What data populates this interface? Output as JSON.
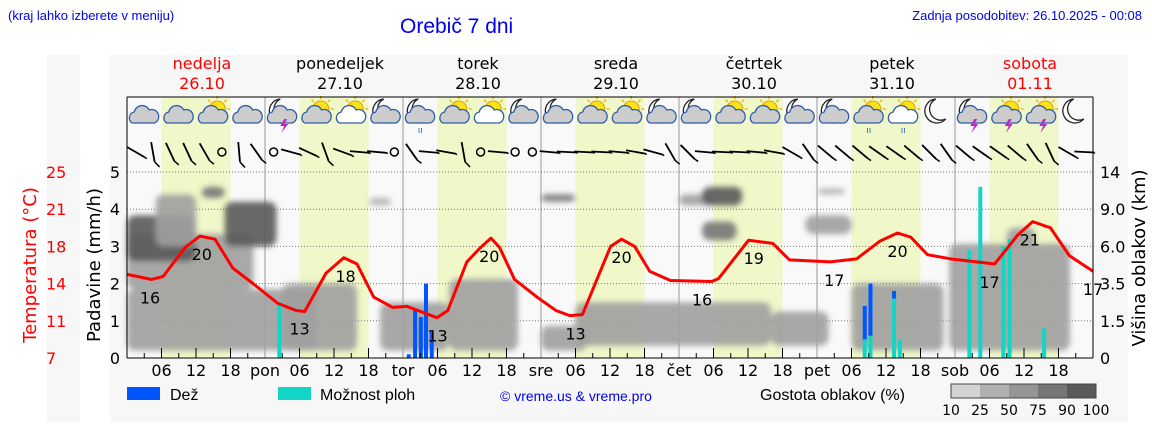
{
  "header": {
    "hint": "(kraj lahko izberete v meniju)",
    "title": "Orebič 7 dni",
    "updated": "Zadnja posodobitev: 26.10.2025 - 00:08"
  },
  "days": [
    {
      "name": "nedelja",
      "date": "26.10",
      "abbr": "",
      "weekend": true
    },
    {
      "name": "ponedeljek",
      "date": "27.10",
      "abbr": "pon",
      "weekend": false
    },
    {
      "name": "torek",
      "date": "28.10",
      "abbr": "tor",
      "weekend": false
    },
    {
      "name": "sreda",
      "date": "29.10",
      "abbr": "sre",
      "weekend": false
    },
    {
      "name": "četrtek",
      "date": "30.10",
      "abbr": "čet",
      "weekend": false
    },
    {
      "name": "petek",
      "date": "31.10",
      "abbr": "pet",
      "weekend": false
    },
    {
      "name": "sobota",
      "date": "01.11",
      "abbr": "sob",
      "weekend": true
    }
  ],
  "colors": {
    "weekend": "#ff0000",
    "weekday": "#000000",
    "temp": "#ff0000",
    "rain": "#0055ff",
    "showers": "#11d6c6",
    "daylight": "#f0f7c8",
    "link": "#0000ee"
  },
  "legend": {
    "rain_label": "Dež",
    "showers_label": "Možnost ploh",
    "copyright": "© vreme.us & vreme.pro",
    "cloud_label": "Gostota oblakov (%)",
    "cloud_scale": [
      {
        "label": "10",
        "color": "#d3d3d3"
      },
      {
        "label": "25",
        "color": "#b1b1b1"
      },
      {
        "label": "50",
        "color": "#959595"
      },
      {
        "label": "75",
        "color": "#767676"
      },
      {
        "label": "90",
        "color": "#5a5a5a"
      }
    ],
    "cloud_scale_last": "100"
  },
  "chart_data": {
    "type": "line",
    "title": "Orebič 7 dni",
    "xlabel": "",
    "hour_ticks": [
      "06",
      "12",
      "18"
    ],
    "x_range_hours": [
      0,
      168
    ],
    "left_axis_temp": {
      "label": "Temperatura (°C)",
      "ticks": [
        "25",
        "21",
        "18",
        "14",
        "11",
        "7"
      ]
    },
    "left_axis_precip": {
      "label": "Padavine (mm/h)",
      "ticks": [
        "5",
        "4",
        "3",
        "2",
        "1",
        "0"
      ],
      "ylim": [
        0,
        5
      ]
    },
    "right_axis_cloud": {
      "label": "Višina oblakov (km)",
      "ticks": [
        "14",
        "9.0",
        "6.0",
        "3.5",
        "1.5",
        "0"
      ]
    },
    "temperature": [
      [
        0,
        16.1
      ],
      [
        4.3,
        15.6
      ],
      [
        6.3,
        15.9
      ],
      [
        10.1,
        18.7
      ],
      [
        12.7,
        19.8
      ],
      [
        15.3,
        19.5
      ],
      [
        18.4,
        16.7
      ],
      [
        21.7,
        15.3
      ],
      [
        26.2,
        13.3
      ],
      [
        29.4,
        12.6
      ],
      [
        30.9,
        12.5
      ],
      [
        34.6,
        16.2
      ],
      [
        37.7,
        17.7
      ],
      [
        40,
        17.1
      ],
      [
        42.9,
        13.9
      ],
      [
        46.2,
        12.9
      ],
      [
        48.7,
        13.0
      ],
      [
        52,
        12.3
      ],
      [
        53.9,
        11.9
      ],
      [
        55.8,
        12.6
      ],
      [
        59.1,
        17.3
      ],
      [
        61.5,
        18.7
      ],
      [
        63.3,
        19.6
      ],
      [
        64.8,
        18.7
      ],
      [
        67.4,
        15.6
      ],
      [
        71.3,
        13.9
      ],
      [
        74.6,
        12.6
      ],
      [
        77,
        12.1
      ],
      [
        79.2,
        12.2
      ],
      [
        84.1,
        18.8
      ],
      [
        86,
        19.5
      ],
      [
        88.3,
        18.8
      ],
      [
        90.9,
        16.4
      ],
      [
        94.5,
        15.5
      ],
      [
        101.7,
        15.4
      ],
      [
        102.9,
        15.7
      ],
      [
        108.1,
        19.4
      ],
      [
        112.3,
        19.1
      ],
      [
        115.2,
        17.5
      ],
      [
        122.3,
        17.3
      ],
      [
        126.9,
        17.6
      ],
      [
        130.9,
        19.3
      ],
      [
        134,
        20.1
      ],
      [
        136.3,
        19.7
      ],
      [
        139.2,
        18.0
      ],
      [
        143.2,
        17.6
      ],
      [
        150.9,
        17.1
      ],
      [
        154.9,
        19.9
      ],
      [
        157.5,
        21.2
      ],
      [
        160.6,
        20.6
      ],
      [
        163.9,
        17.9
      ],
      [
        168.4,
        16.4
      ]
    ],
    "temp_labels": [
      {
        "hour": 4,
        "value": "16",
        "pos": "below"
      },
      {
        "hour": 13,
        "value": "20",
        "pos": "below"
      },
      {
        "hour": 30,
        "value": "13",
        "pos": "below"
      },
      {
        "hour": 38,
        "value": "18",
        "pos": "below"
      },
      {
        "hour": 54,
        "value": "13",
        "pos": "below"
      },
      {
        "hour": 63,
        "value": "20",
        "pos": "below"
      },
      {
        "hour": 78,
        "value": "13",
        "pos": "below"
      },
      {
        "hour": 86,
        "value": "20",
        "pos": "below"
      },
      {
        "hour": 100,
        "value": "16",
        "pos": "below"
      },
      {
        "hour": 109,
        "value": "19",
        "pos": "below"
      },
      {
        "hour": 123,
        "value": "17",
        "pos": "below"
      },
      {
        "hour": 134,
        "value": "20",
        "pos": "below"
      },
      {
        "hour": 150,
        "value": "17",
        "pos": "below"
      },
      {
        "hour": 157,
        "value": "21",
        "pos": "below"
      },
      {
        "hour": 168,
        "value": "17",
        "pos": "below"
      }
    ],
    "precipitation": [
      {
        "hour": 26.5,
        "rain": 0,
        "showers": 1.5
      },
      {
        "hour": 49.0,
        "rain": 0.1,
        "showers": 0
      },
      {
        "hour": 50.1,
        "rain": 1.3,
        "showers": 0
      },
      {
        "hour": 51.1,
        "rain": 1.1,
        "showers": 0
      },
      {
        "hour": 52.0,
        "rain": 2.0,
        "showers": 0
      },
      {
        "hour": 53.0,
        "rain": 0.7,
        "showers": 0
      },
      {
        "hour": 128.3,
        "rain": 0.9,
        "showers": 0.5
      },
      {
        "hour": 129.3,
        "rain": 1.4,
        "showers": 0.6
      },
      {
        "hour": 133.4,
        "rain": 0.2,
        "showers": 1.6
      },
      {
        "hour": 134.4,
        "rain": 0,
        "showers": 0.5
      },
      {
        "hour": 146.5,
        "rain": 0,
        "showers": 2.9
      },
      {
        "hour": 148.4,
        "rain": 0,
        "showers": 4.6
      },
      {
        "hour": 152.4,
        "rain": 0,
        "showers": 3.0
      },
      {
        "hour": 153.5,
        "rain": 0,
        "showers": 3.2
      },
      {
        "hour": 159.5,
        "rain": 0,
        "showers": 0.8
      }
    ],
    "clouds": [
      {
        "h": [
          0,
          33
        ],
        "km": [
          0.3,
          3.2
        ],
        "density": 50
      },
      {
        "h": [
          0,
          22
        ],
        "km": [
          3.2,
          7
        ],
        "density": 50
      },
      {
        "h": [
          0,
          12
        ],
        "km": [
          5,
          8.5
        ],
        "density": 90
      },
      {
        "h": [
          5,
          12
        ],
        "km": [
          6,
          11
        ],
        "density": 50
      },
      {
        "h": [
          13,
          17
        ],
        "km": [
          10.5,
          12
        ],
        "density": 75
      },
      {
        "h": [
          17,
          26
        ],
        "km": [
          6,
          10
        ],
        "density": 90
      },
      {
        "h": [
          27,
          40
        ],
        "km": [
          0.3,
          3.5
        ],
        "density": 50
      },
      {
        "h": [
          42,
          46
        ],
        "km": [
          9.5,
          10.5
        ],
        "density": 25
      },
      {
        "h": [
          44,
          56
        ],
        "km": [
          0.3,
          2.5
        ],
        "density": 50
      },
      {
        "h": [
          56,
          68
        ],
        "km": [
          0.3,
          3.8
        ],
        "density": 50
      },
      {
        "h": [
          72,
          78
        ],
        "km": [
          10,
          11
        ],
        "density": 75
      },
      {
        "h": [
          72,
          80
        ],
        "km": [
          0.3,
          1.3
        ],
        "density": 50
      },
      {
        "h": [
          78,
          112
        ],
        "km": [
          0.5,
          2.5
        ],
        "density": 50
      },
      {
        "h": [
          96,
          102
        ],
        "km": [
          9.5,
          11
        ],
        "density": 50
      },
      {
        "h": [
          100,
          107
        ],
        "km": [
          9.5,
          12
        ],
        "density": 90
      },
      {
        "h": [
          100,
          106
        ],
        "km": [
          6.5,
          8
        ],
        "density": 75
      },
      {
        "h": [
          112,
          122
        ],
        "km": [
          0.5,
          2
        ],
        "density": 50
      },
      {
        "h": [
          118,
          126
        ],
        "km": [
          7,
          8.5
        ],
        "density": 50
      },
      {
        "h": [
          120,
          125
        ],
        "km": [
          11,
          11.8
        ],
        "density": 25
      },
      {
        "h": [
          126,
          142
        ],
        "km": [
          0.3,
          3.5
        ],
        "density": 50
      },
      {
        "h": [
          143,
          164
        ],
        "km": [
          0.3,
          6.2
        ],
        "density": 50
      },
      {
        "h": [
          153,
          158
        ],
        "km": [
          6,
          7.5
        ],
        "density": 50
      }
    ],
    "weather_icons": [
      "cloudy",
      "cloudy",
      "partly-sunny",
      "cloudy",
      "night-thunder",
      "partly-sunny",
      "sun-cloud",
      "night-cloudy",
      "night-rain",
      "partly-sunny",
      "sun-cloud",
      "night-cloudy",
      "night-cloudy",
      "partly-sunny",
      "partly-sunny",
      "night-cloudy",
      "night-cloudy",
      "partly-sunny",
      "partly-sunny",
      "night-cloudy",
      "night-cloudy",
      "partly-sunny-showers",
      "sun-cloud-showers",
      "night-clear",
      "night-thunder",
      "sun-thunder",
      "sun-thunder",
      "night-clear"
    ],
    "wind_barb_angles": [
      30,
      80,
      65,
      65,
      60,
      null,
      85,
      55,
      null,
      15,
      25,
      70,
      20,
      5,
      5,
      null,
      55,
      5,
      10,
      80,
      null,
      5,
      null,
      null,
      5,
      3,
      3,
      3,
      5,
      10,
      15,
      60,
      45,
      5,
      3,
      3,
      5,
      10,
      30,
      55,
      40,
      40,
      40,
      35,
      35,
      40,
      45,
      55,
      40,
      35,
      35,
      40,
      55,
      65,
      30,
      3
    ]
  }
}
